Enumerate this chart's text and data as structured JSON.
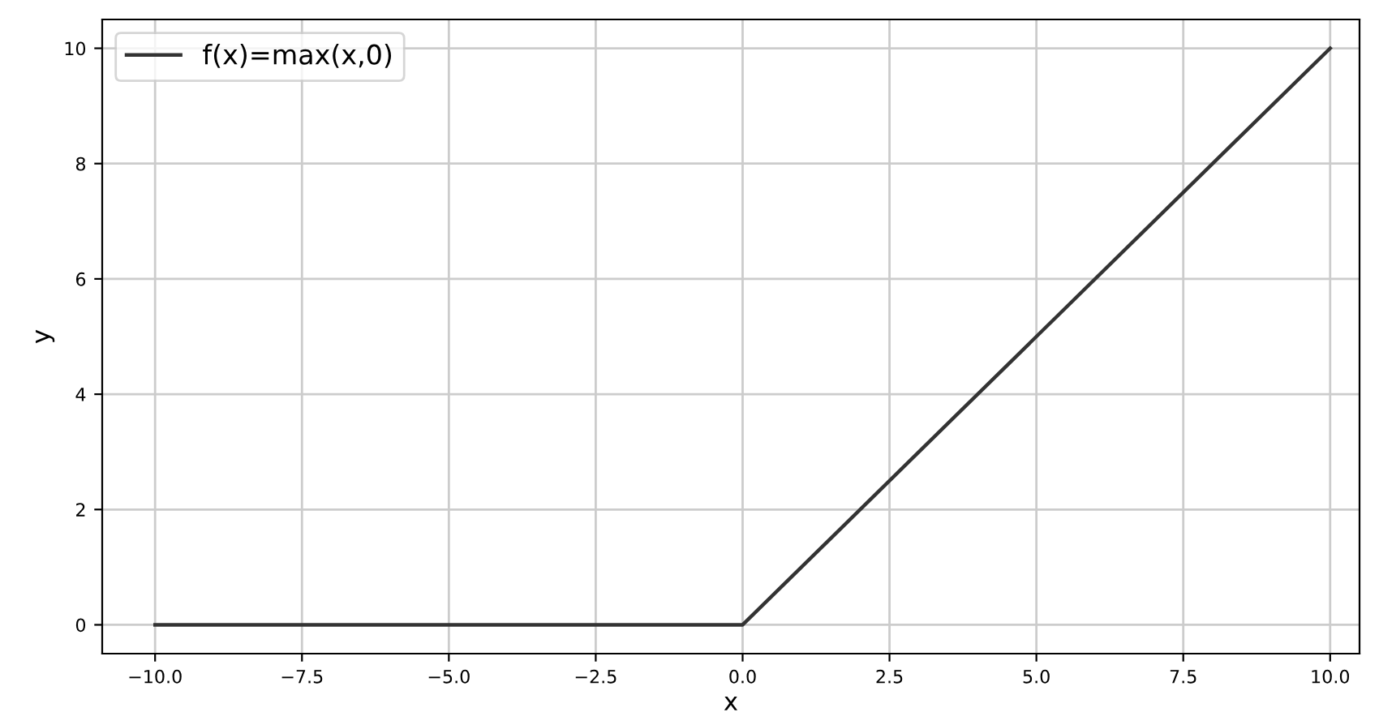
{
  "chart_data": {
    "type": "line",
    "xlabel": "x",
    "ylabel": "y",
    "series": [
      {
        "name": "f(x)=max(x,0)",
        "color": "#333333",
        "x": [
          -10,
          0,
          10
        ],
        "values": [
          0,
          0,
          10
        ]
      }
    ],
    "xlim": [
      -10.9,
      10.5
    ],
    "ylim": [
      -0.5,
      10.5
    ],
    "xticks": [
      {
        "value": -10,
        "label": "−10.0"
      },
      {
        "value": -7.5,
        "label": "−7.5"
      },
      {
        "value": -5,
        "label": "−5.0"
      },
      {
        "value": -2.5,
        "label": "−2.5"
      },
      {
        "value": 0,
        "label": "0.0"
      },
      {
        "value": 2.5,
        "label": "2.5"
      },
      {
        "value": 5,
        "label": "5.0"
      },
      {
        "value": 7.5,
        "label": "7.5"
      },
      {
        "value": 10,
        "label": "10.0"
      }
    ],
    "yticks": [
      0,
      2,
      4,
      6,
      8,
      10
    ],
    "grid": true,
    "legend": "top left",
    "marker": "none",
    "line_style": "solid"
  }
}
